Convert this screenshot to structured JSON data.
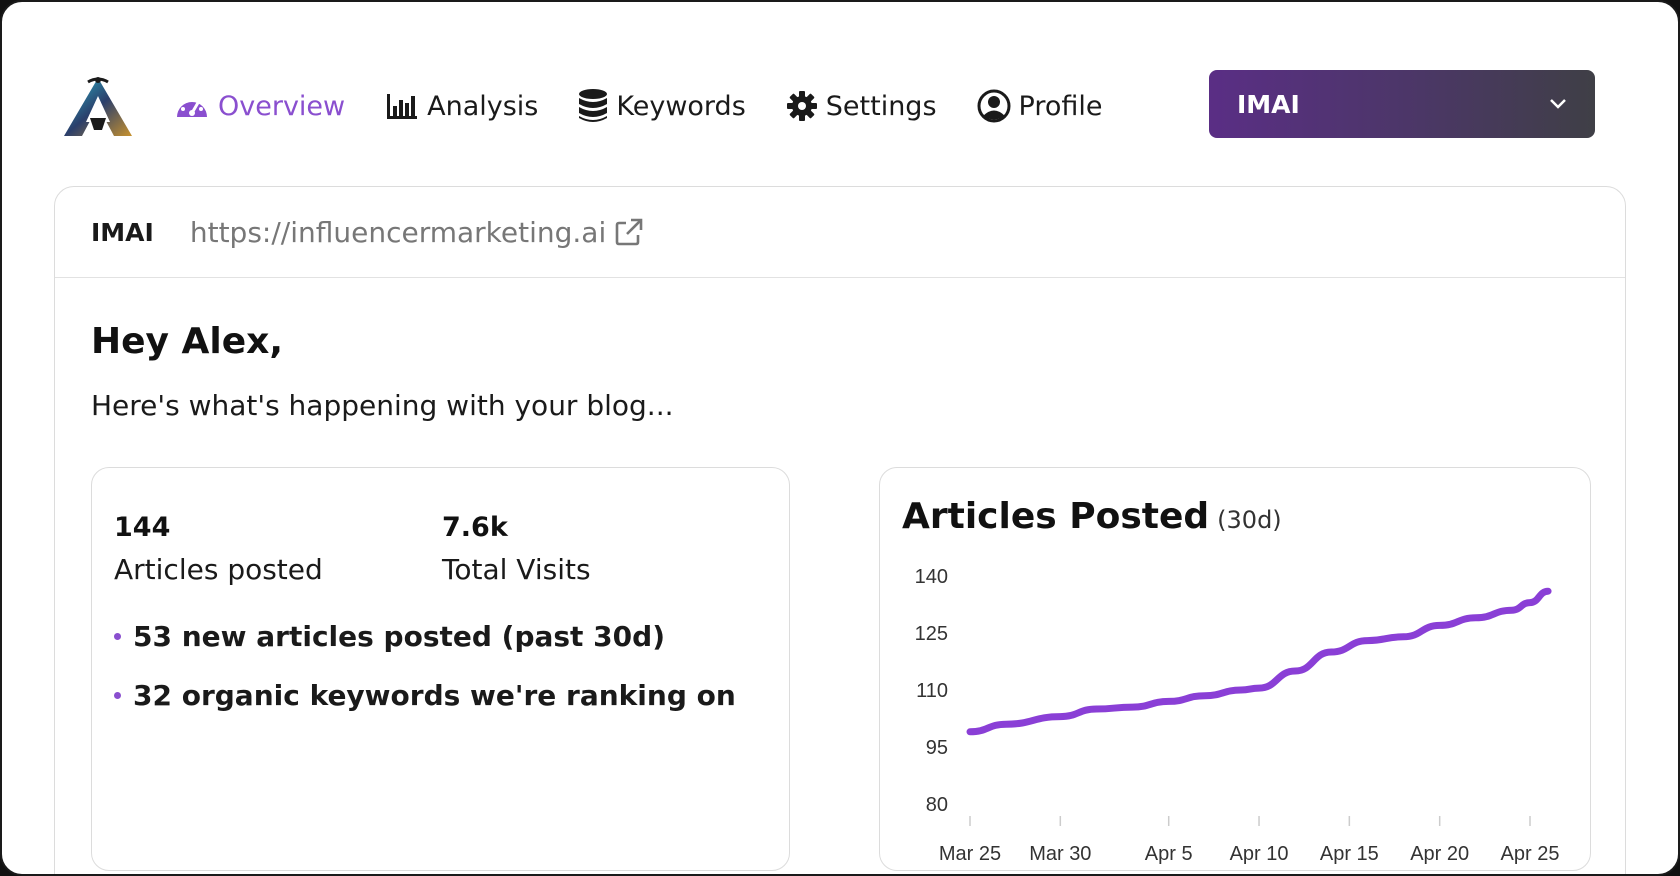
{
  "nav": {
    "items": [
      {
        "label": "Overview",
        "icon": "gauge-icon",
        "active": true
      },
      {
        "label": "Analysis",
        "icon": "bar-chart-icon",
        "active": false
      },
      {
        "label": "Keywords",
        "icon": "database-icon",
        "active": false
      },
      {
        "label": "Settings",
        "icon": "gear-icon",
        "active": false
      },
      {
        "label": "Profile",
        "icon": "user-circle-icon",
        "active": false
      }
    ],
    "selector": {
      "value": "IMAI"
    }
  },
  "site": {
    "name": "IMAI",
    "url": "https://influencermarketing.ai"
  },
  "greeting": {
    "title": "Hey Alex,",
    "subtitle": "Here's what's happening with your blog..."
  },
  "stats": {
    "items": [
      {
        "value": "144",
        "label": "Articles posted"
      },
      {
        "value": "7.6k",
        "label": "Total Visits"
      }
    ],
    "bullets": [
      "53 new articles posted (past 30d)",
      "32 organic keywords we're ranking on"
    ]
  },
  "colors": {
    "accent": "#8a4fcf",
    "line": "#8a3fd6"
  },
  "chart_data": {
    "type": "line",
    "title": "Articles Posted",
    "period": "(30d)",
    "x_labels": [
      "Mar 25",
      "Mar 30",
      "Apr 5",
      "Apr 10",
      "Apr 15",
      "Apr 20",
      "Apr 25"
    ],
    "y_ticks": [
      140,
      125,
      110,
      95,
      80
    ],
    "ylim": [
      80,
      140
    ],
    "x": [
      "Mar 25",
      "Mar 27",
      "Mar 30",
      "Apr 1",
      "Apr 3",
      "Apr 5",
      "Apr 7",
      "Apr 9",
      "Apr 10",
      "Apr 12",
      "Apr 14",
      "Apr 16",
      "Apr 18",
      "Apr 20",
      "Apr 22",
      "Apr 24",
      "Apr 25",
      "Apr 26"
    ],
    "values": [
      99,
      101,
      103,
      105,
      105.5,
      107,
      108.5,
      110,
      110.5,
      115,
      120,
      123,
      124,
      127,
      129,
      131,
      133,
      136
    ],
    "grid": false,
    "legend": "none"
  }
}
